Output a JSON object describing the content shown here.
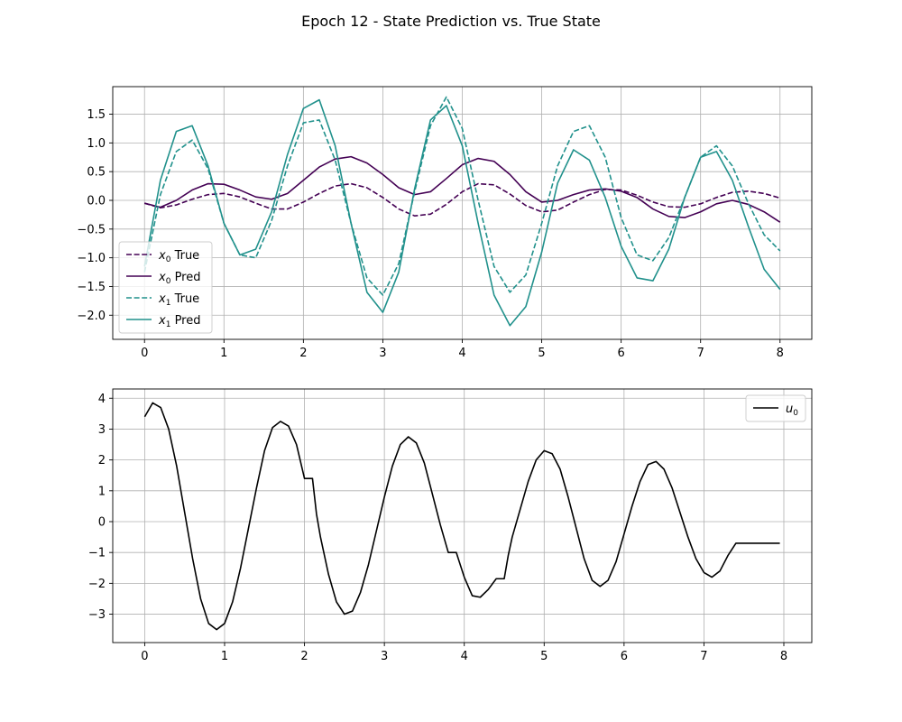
{
  "figure": {
    "title": "Epoch 12 - State Prediction vs. True State"
  },
  "chart_data": [
    {
      "type": "line",
      "title": "",
      "xlabel": "",
      "ylabel": "",
      "xlim": [
        -0.4,
        8.4
      ],
      "ylim": [
        -2.42,
        1.98
      ],
      "xticks": [
        0,
        1,
        2,
        3,
        4,
        5,
        6,
        7,
        8
      ],
      "yticks": [
        -2.0,
        -1.5,
        -1.0,
        -0.5,
        0.0,
        0.5,
        1.0,
        1.5
      ],
      "ytick_labels": [
        "−2.0",
        "−1.5",
        "−1.0",
        "−0.5",
        "0.0",
        "0.5",
        "1.0",
        "1.5"
      ],
      "grid": true,
      "legend_position": "lower-left",
      "series": [
        {
          "legend_main": "x",
          "legend_sub": "0",
          "legend_suffix": " True",
          "color": "#440154",
          "dash": "dashed",
          "x": [
            0,
            0.2,
            0.4,
            0.6,
            0.8,
            1.0,
            1.2,
            1.4,
            1.6,
            1.8,
            2.0,
            2.2,
            2.4,
            2.6,
            2.8,
            3.0,
            3.2,
            3.4,
            3.6,
            3.8,
            4.0,
            4.2,
            4.4,
            4.6,
            4.8,
            5.0,
            5.2,
            5.4,
            5.6,
            5.8,
            6.0,
            6.2,
            6.4,
            6.6,
            6.8,
            7.0,
            7.2,
            7.4,
            7.6,
            7.8,
            8.0
          ],
          "y": [
            -0.05,
            -0.13,
            -0.08,
            0.02,
            0.1,
            0.12,
            0.06,
            -0.05,
            -0.15,
            -0.15,
            -0.03,
            0.12,
            0.25,
            0.29,
            0.22,
            0.05,
            -0.15,
            -0.27,
            -0.24,
            -0.07,
            0.15,
            0.29,
            0.27,
            0.11,
            -0.09,
            -0.2,
            -0.17,
            -0.03,
            0.1,
            0.19,
            0.18,
            0.09,
            -0.03,
            -0.11,
            -0.12,
            -0.06,
            0.05,
            0.14,
            0.16,
            0.12,
            0.04
          ]
        },
        {
          "legend_main": "x",
          "legend_sub": "0",
          "legend_suffix": " Pred",
          "color": "#440154",
          "dash": "solid",
          "x": [
            0,
            0.2,
            0.4,
            0.6,
            0.8,
            1.0,
            1.2,
            1.4,
            1.6,
            1.8,
            2.0,
            2.2,
            2.4,
            2.6,
            2.8,
            3.0,
            3.2,
            3.4,
            3.6,
            3.8,
            4.0,
            4.2,
            4.4,
            4.6,
            4.8,
            5.0,
            5.2,
            5.4,
            5.6,
            5.8,
            6.0,
            6.2,
            6.4,
            6.6,
            6.8,
            7.0,
            7.2,
            7.4,
            7.6,
            7.8,
            8.0
          ],
          "y": [
            -0.05,
            -0.12,
            0.0,
            0.18,
            0.29,
            0.28,
            0.18,
            0.06,
            0.02,
            0.12,
            0.35,
            0.58,
            0.72,
            0.76,
            0.65,
            0.45,
            0.22,
            0.1,
            0.15,
            0.38,
            0.62,
            0.73,
            0.68,
            0.45,
            0.15,
            -0.03,
            0.0,
            0.1,
            0.18,
            0.2,
            0.16,
            0.05,
            -0.15,
            -0.28,
            -0.3,
            -0.2,
            -0.06,
            0.0,
            -0.07,
            -0.2,
            -0.38
          ]
        },
        {
          "legend_main": "x",
          "legend_sub": "1",
          "legend_suffix": " True",
          "color": "#21918c",
          "dash": "dashed",
          "x": [
            0,
            0.2,
            0.4,
            0.6,
            0.8,
            1.0,
            1.2,
            1.4,
            1.6,
            1.8,
            2.0,
            2.2,
            2.4,
            2.6,
            2.8,
            3.0,
            3.2,
            3.4,
            3.6,
            3.8,
            4.0,
            4.2,
            4.4,
            4.6,
            4.8,
            5.0,
            5.2,
            5.4,
            5.6,
            5.8,
            6.0,
            6.2,
            6.4,
            6.6,
            6.8,
            7.0,
            7.2,
            7.4,
            7.6,
            7.8,
            8.0
          ],
          "y": [
            -1.25,
            0.1,
            0.85,
            1.05,
            0.55,
            -0.4,
            -0.95,
            -1.0,
            -0.35,
            0.6,
            1.35,
            1.4,
            0.7,
            -0.4,
            -1.35,
            -1.65,
            -1.1,
            0.15,
            1.3,
            1.8,
            1.25,
            0.0,
            -1.15,
            -1.6,
            -1.3,
            -0.4,
            0.6,
            1.2,
            1.3,
            0.75,
            -0.3,
            -0.95,
            -1.05,
            -0.65,
            0.05,
            0.75,
            0.95,
            0.6,
            -0.05,
            -0.6,
            -0.88
          ]
        },
        {
          "legend_main": "x",
          "legend_sub": "1",
          "legend_suffix": " Pred",
          "color": "#21918c",
          "dash": "solid",
          "x": [
            0,
            0.2,
            0.4,
            0.6,
            0.8,
            1.0,
            1.2,
            1.4,
            1.6,
            1.8,
            2.0,
            2.2,
            2.4,
            2.6,
            2.8,
            3.0,
            3.2,
            3.4,
            3.6,
            3.8,
            4.0,
            4.2,
            4.4,
            4.6,
            4.8,
            5.0,
            5.2,
            5.4,
            5.6,
            5.8,
            6.0,
            6.2,
            6.4,
            6.6,
            6.8,
            7.0,
            7.2,
            7.4,
            7.6,
            7.8,
            8.0
          ],
          "y": [
            -1.15,
            0.35,
            1.2,
            1.3,
            0.6,
            -0.4,
            -0.95,
            -0.85,
            -0.2,
            0.8,
            1.6,
            1.75,
            0.95,
            -0.4,
            -1.6,
            -1.95,
            -1.25,
            0.2,
            1.4,
            1.65,
            0.95,
            -0.4,
            -1.65,
            -2.18,
            -1.85,
            -0.9,
            0.3,
            0.88,
            0.7,
            0.05,
            -0.8,
            -1.35,
            -1.4,
            -0.85,
            0.05,
            0.75,
            0.85,
            0.35,
            -0.45,
            -1.2,
            -1.55
          ]
        }
      ]
    },
    {
      "type": "line",
      "title": "",
      "xlabel": "",
      "ylabel": "",
      "xlim": [
        -0.4,
        8.35
      ],
      "ylim": [
        -3.92,
        4.3
      ],
      "xticks": [
        0,
        1,
        2,
        3,
        4,
        5,
        6,
        7,
        8
      ],
      "yticks": [
        -3,
        -2,
        -1,
        0,
        1,
        2,
        3,
        4
      ],
      "ytick_labels": [
        "−3",
        "−2",
        "−1",
        "0",
        "1",
        "2",
        "3",
        "4"
      ],
      "grid": true,
      "legend_position": "upper-right",
      "series": [
        {
          "legend_main": "u",
          "legend_sub": "0",
          "legend_suffix": "",
          "color": "#000000",
          "dash": "solid",
          "x": [
            0,
            0.1,
            0.2,
            0.3,
            0.4,
            0.5,
            0.6,
            0.7,
            0.8,
            0.9,
            1.0,
            1.1,
            1.2,
            1.3,
            1.4,
            1.5,
            1.6,
            1.7,
            1.8,
            1.9,
            2.0,
            2.1,
            2.15,
            2.2,
            2.3,
            2.4,
            2.5,
            2.6,
            2.7,
            2.8,
            2.9,
            3.0,
            3.1,
            3.2,
            3.3,
            3.4,
            3.5,
            3.6,
            3.7,
            3.8,
            3.9,
            4.0,
            4.05,
            4.1,
            4.2,
            4.3,
            4.4,
            4.5,
            4.55,
            4.6,
            4.7,
            4.8,
            4.9,
            5.0,
            5.1,
            5.2,
            5.3,
            5.4,
            5.5,
            5.6,
            5.7,
            5.8,
            5.9,
            6.0,
            6.1,
            6.2,
            6.3,
            6.4,
            6.5,
            6.6,
            6.7,
            6.8,
            6.9,
            7.0,
            7.1,
            7.2,
            7.3,
            7.4,
            7.5,
            7.6,
            7.7,
            7.8,
            7.9,
            7.95
          ],
          "y": [
            3.4,
            3.85,
            3.7,
            3.0,
            1.8,
            0.3,
            -1.2,
            -2.5,
            -3.3,
            -3.5,
            -3.3,
            -2.6,
            -1.5,
            -0.2,
            1.1,
            2.3,
            3.05,
            3.25,
            3.1,
            2.5,
            1.4,
            1.4,
            0.25,
            -0.5,
            -1.7,
            -2.6,
            -3.0,
            -2.9,
            -2.3,
            -1.4,
            -0.3,
            0.8,
            1.8,
            2.5,
            2.75,
            2.55,
            1.9,
            0.9,
            -0.1,
            -1.0,
            -1.0,
            -1.8,
            -2.1,
            -2.4,
            -2.45,
            -2.2,
            -1.85,
            -1.85,
            -1.1,
            -0.5,
            0.4,
            1.3,
            2.0,
            2.3,
            2.2,
            1.7,
            0.8,
            -0.2,
            -1.2,
            -1.9,
            -2.1,
            -1.9,
            -1.3,
            -0.4,
            0.5,
            1.3,
            1.85,
            1.95,
            1.7,
            1.1,
            0.3,
            -0.5,
            -1.2,
            -1.65,
            -1.8,
            -1.6,
            -1.1,
            -0.7,
            -0.7,
            -0.7,
            -0.7,
            -0.7,
            -0.7,
            -0.7
          ]
        }
      ]
    }
  ]
}
